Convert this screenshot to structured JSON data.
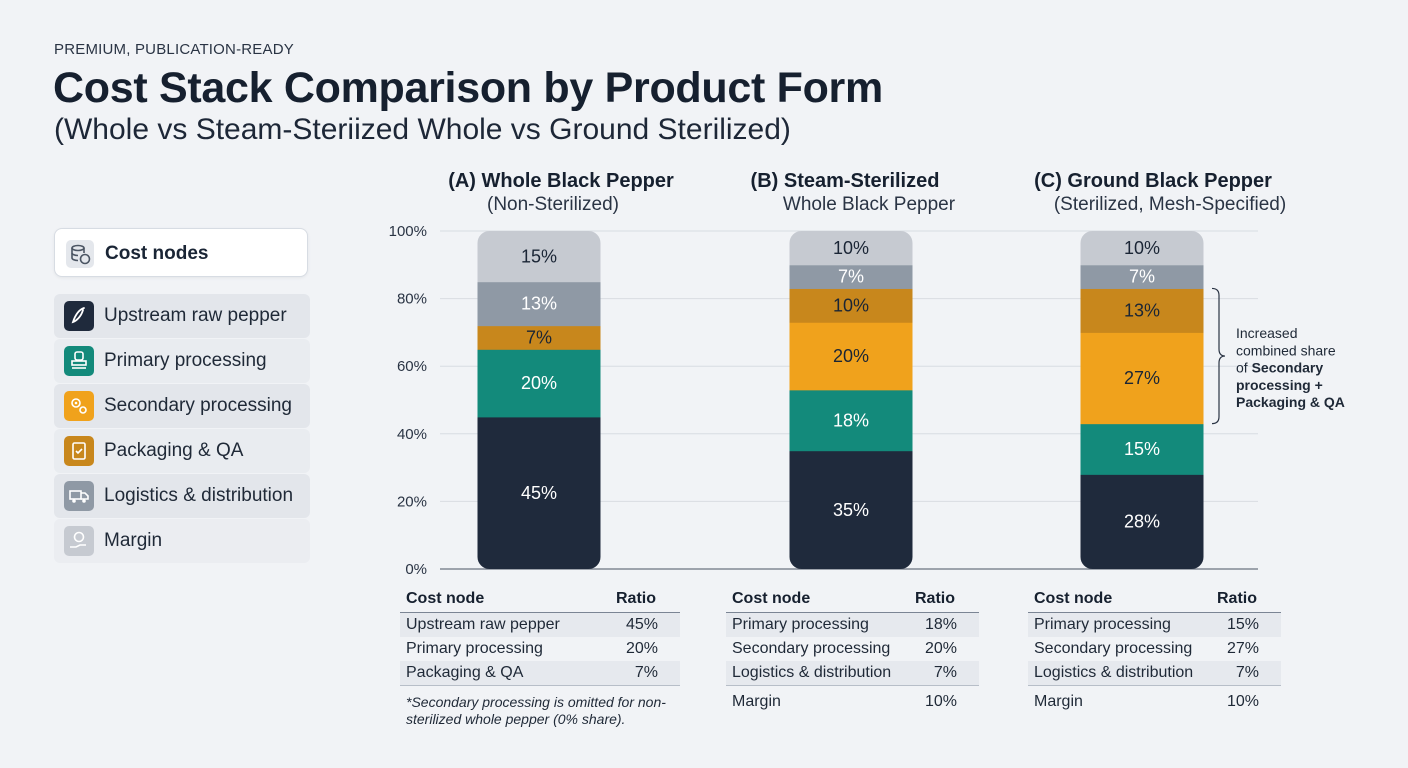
{
  "header": {
    "eyebrow": "PREMIUM, PUBLICATION-READY",
    "title": "Cost Stack Comparison by Product Form",
    "subtitle": "(Whole vs Steam-Steriized Whole vs Ground Sterilized)"
  },
  "legend": {
    "heading": "Cost nodes",
    "items": [
      {
        "label": "Upstream raw pepper",
        "color": "#1f2a3c",
        "icon": "chili-icon"
      },
      {
        "label": "Primary processing",
        "color": "#138a7b",
        "icon": "stamp-icon"
      },
      {
        "label": "Secondary processing",
        "color": "#f0a21c",
        "icon": "gears-icon"
      },
      {
        "label": "Packaging & QA",
        "color": "#c8871c",
        "icon": "clipboard-check-icon"
      },
      {
        "label": "Logistics & distribution",
        "color": "#8f99a5",
        "icon": "truck-icon"
      },
      {
        "label": "Margin",
        "color": "#c6cad1",
        "icon": "money-hand-icon"
      }
    ]
  },
  "chart_data": {
    "type": "bar",
    "stacked": true,
    "y_ticks": [
      "0%",
      "20%",
      "40%",
      "60%",
      "80%",
      "100%"
    ],
    "ylim": [
      0,
      100
    ],
    "categories": [
      {
        "title": "(A) Whole Black Pepper",
        "subtitle": "(Non-Sterilized)"
      },
      {
        "title": "(B) Steam-Sterilized",
        "subtitle": "Whole Black Pepper"
      },
      {
        "title": "(C) Ground Black Pepper",
        "subtitle": "(Sterilized, Mesh-Specified)"
      }
    ],
    "series": [
      {
        "name": "Upstream raw pepper",
        "values": [
          45,
          35,
          28
        ],
        "color": "#1f2a3c",
        "text_color": "#ffffff"
      },
      {
        "name": "Primary processing",
        "values": [
          20,
          18,
          15
        ],
        "color": "#138a7b",
        "text_color": "#ffffff"
      },
      {
        "name": "Secondary processing",
        "values": [
          0,
          20,
          27
        ],
        "color": "#f0a21c",
        "text_color": "#1a2535"
      },
      {
        "name": "Packaging & QA",
        "values": [
          7,
          10,
          13
        ],
        "color": "#c8871c",
        "text_color": "#1a2535"
      },
      {
        "name": "Logistics & distribution",
        "values": [
          13,
          7,
          7
        ],
        "color": "#8f99a5",
        "text_color": "#ffffff"
      },
      {
        "name": "Margin",
        "values": [
          15,
          10,
          10
        ],
        "color": "#c6cad1",
        "text_color": "#1a2535"
      }
    ],
    "annotation": {
      "lines": [
        "Increased",
        "combined share",
        "of Secondary",
        "processing +",
        "Packaging & QA"
      ]
    }
  },
  "tables": [
    {
      "headers": [
        "Cost node",
        "Ratio"
      ],
      "rows": [
        [
          "Upstream raw pepper",
          "45%"
        ],
        [
          "Primary processing",
          "20%"
        ],
        [
          "Packaging & QA",
          "7%"
        ]
      ],
      "footnote": "*Secondary processing is omitted for non-sterilized whole pepper (0% share)."
    },
    {
      "headers": [
        "Cost node",
        "Ratio"
      ],
      "rows": [
        [
          "Primary processing",
          "18%"
        ],
        [
          "Secondary processing",
          "20%"
        ],
        [
          "Logistics & distribution",
          "7%"
        ],
        [
          "Margin",
          "10%"
        ]
      ]
    },
    {
      "headers": [
        "Cost node",
        "Ratio"
      ],
      "rows": [
        [
          "Primary processing",
          "15%"
        ],
        [
          "Secondary processing",
          "27%"
        ],
        [
          "Logistics & distribution",
          "7%"
        ],
        [
          "Margin",
          "10%"
        ]
      ]
    }
  ]
}
